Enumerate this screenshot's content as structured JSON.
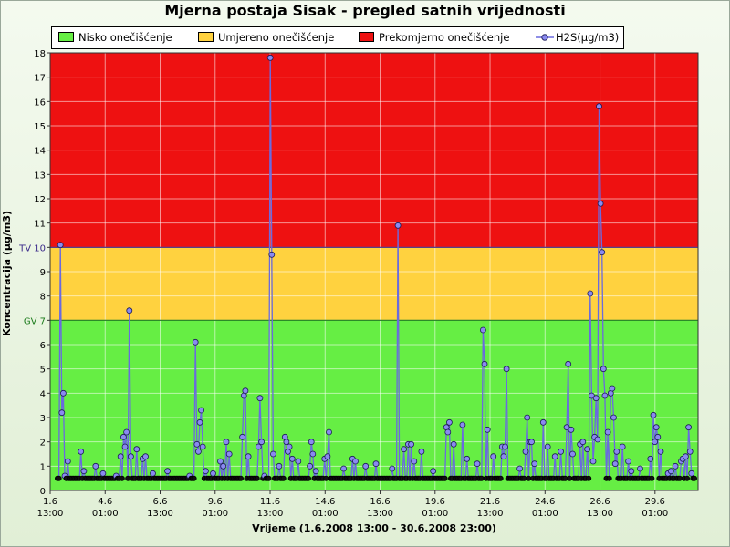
{
  "chart_data": {
    "type": "line",
    "title": "Mjerna postaja Sisak - pregled satnih vrijednosti",
    "xlabel": "Vrijeme (1.6.2008 13:00 - 30.6.2008 23:00)",
    "ylabel": "Koncentracija (µg/m3)",
    "ylim": [
      0,
      18
    ],
    "yticks": [
      {
        "value": 1,
        "label": "1"
      },
      {
        "value": 2,
        "label": "2"
      },
      {
        "value": 3,
        "label": "3"
      },
      {
        "value": 4,
        "label": "4"
      },
      {
        "value": 5,
        "label": "5"
      },
      {
        "value": 6,
        "label": "6"
      },
      {
        "value": 7,
        "label": "GV 7"
      },
      {
        "value": 8,
        "label": "8"
      },
      {
        "value": 9,
        "label": "9"
      },
      {
        "value": 10,
        "label": "TV 10"
      },
      {
        "value": 11,
        "label": "11"
      },
      {
        "value": 12,
        "label": "12"
      },
      {
        "value": 13,
        "label": "13"
      },
      {
        "value": 14,
        "label": "14"
      },
      {
        "value": 15,
        "label": "15"
      },
      {
        "value": 16,
        "label": "16"
      },
      {
        "value": 17,
        "label": "17"
      },
      {
        "value": 18,
        "label": "18"
      }
    ],
    "yzero_label": "0",
    "xticks": [
      {
        "date": "1.6",
        "time": "13:00"
      },
      {
        "date": "4.6",
        "time": "01:00"
      },
      {
        "date": "6.6",
        "time": "13:00"
      },
      {
        "date": "9.6",
        "time": "01:00"
      },
      {
        "date": "11.6",
        "time": "13:00"
      },
      {
        "date": "14.6",
        "time": "01:00"
      },
      {
        "date": "16.6",
        "time": "13:00"
      },
      {
        "date": "19.6",
        "time": "01:00"
      },
      {
        "date": "21.6",
        "time": "13:00"
      },
      {
        "date": "24.6",
        "time": "01:00"
      },
      {
        "date": "26.6",
        "time": "13:00"
      },
      {
        "date": "29.6",
        "time": "01:00"
      }
    ],
    "bands": [
      {
        "name": "Nisko onečišćenje",
        "from": 0,
        "to": 7,
        "color": "#66ee44"
      },
      {
        "name": "Umjereno onečišćenje",
        "from": 7,
        "to": 10,
        "color": "#ffd23f"
      },
      {
        "name": "Prekomjerno onečišćenje",
        "from": 10,
        "to": 18,
        "color": "#ee1111"
      }
    ],
    "thresholds": [
      {
        "label": "GV 7",
        "value": 7,
        "color": "#1a7a1a"
      },
      {
        "label": "TV 10",
        "value": 10,
        "color": "#3b2a8a"
      }
    ],
    "legend_position": "top",
    "grid": true,
    "series": [
      {
        "name": "H2S(µg/m3)",
        "color": "#6a6adf",
        "baseline": 0.5,
        "peaks": [
          [
            2,
            10.1
          ],
          [
            3,
            3.2
          ],
          [
            4,
            4.0
          ],
          [
            5,
            0.6
          ],
          [
            7,
            1.2
          ],
          [
            16,
            1.6
          ],
          [
            18,
            0.8
          ],
          [
            26,
            1.0
          ],
          [
            31,
            0.7
          ],
          [
            40,
            0.6
          ],
          [
            43,
            1.4
          ],
          [
            45,
            2.2
          ],
          [
            46,
            1.8
          ],
          [
            47,
            2.4
          ],
          [
            49,
            7.4
          ],
          [
            50,
            1.4
          ],
          [
            54,
            1.7
          ],
          [
            58,
            1.3
          ],
          [
            60,
            1.4
          ],
          [
            65,
            0.7
          ],
          [
            75,
            0.8
          ],
          [
            90,
            0.6
          ],
          [
            94,
            6.1
          ],
          [
            95,
            1.9
          ],
          [
            96,
            1.6
          ],
          [
            97,
            2.8
          ],
          [
            98,
            3.3
          ],
          [
            99,
            1.8
          ],
          [
            101,
            0.8
          ],
          [
            106,
            0.7
          ],
          [
            111,
            1.2
          ],
          [
            113,
            1.0
          ],
          [
            115,
            2.0
          ],
          [
            117,
            1.5
          ],
          [
            126,
            2.2
          ],
          [
            127,
            3.9
          ],
          [
            128,
            4.1
          ],
          [
            130,
            1.4
          ],
          [
            137,
            1.8
          ],
          [
            138,
            3.8
          ],
          [
            139,
            2.0
          ],
          [
            141,
            0.6
          ],
          [
            145,
            17.8
          ],
          [
            146,
            9.7
          ],
          [
            147,
            1.5
          ],
          [
            151,
            1.0
          ],
          [
            155,
            2.2
          ],
          [
            156,
            2.0
          ],
          [
            157,
            1.6
          ],
          [
            158,
            1.8
          ],
          [
            160,
            1.3
          ],
          [
            164,
            1.2
          ],
          [
            172,
            1.0
          ],
          [
            173,
            2.0
          ],
          [
            174,
            1.5
          ],
          [
            176,
            0.8
          ],
          [
            182,
            1.3
          ],
          [
            184,
            1.4
          ],
          [
            185,
            2.4
          ],
          [
            195,
            0.9
          ],
          [
            201,
            1.3
          ],
          [
            203,
            1.2
          ],
          [
            210,
            1.0
          ],
          [
            217,
            1.1
          ],
          [
            228,
            0.9
          ],
          [
            232,
            10.9
          ],
          [
            236,
            1.7
          ],
          [
            239,
            1.9
          ],
          [
            241,
            1.9
          ],
          [
            243,
            1.2
          ],
          [
            248,
            1.6
          ],
          [
            256,
            0.8
          ],
          [
            265,
            2.6
          ],
          [
            266,
            2.4
          ],
          [
            267,
            2.8
          ],
          [
            270,
            1.9
          ],
          [
            276,
            2.7
          ],
          [
            279,
            1.3
          ],
          [
            286,
            1.1
          ],
          [
            290,
            6.6
          ],
          [
            291,
            5.2
          ],
          [
            293,
            2.5
          ],
          [
            297,
            1.4
          ],
          [
            303,
            1.8
          ],
          [
            304,
            1.4
          ],
          [
            305,
            1.8
          ],
          [
            306,
            5.0
          ],
          [
            315,
            0.9
          ],
          [
            319,
            1.6
          ],
          [
            320,
            3.0
          ],
          [
            322,
            2.0
          ],
          [
            323,
            2.0
          ],
          [
            325,
            1.1
          ],
          [
            331,
            2.8
          ],
          [
            334,
            1.8
          ],
          [
            339,
            1.4
          ],
          [
            343,
            1.6
          ],
          [
            347,
            2.6
          ],
          [
            348,
            5.2
          ],
          [
            350,
            2.5
          ],
          [
            351,
            1.5
          ],
          [
            356,
            1.9
          ],
          [
            358,
            2.0
          ],
          [
            361,
            1.7
          ],
          [
            363,
            8.1
          ],
          [
            364,
            3.9
          ],
          [
            365,
            1.2
          ],
          [
            366,
            2.2
          ],
          [
            367,
            3.8
          ],
          [
            368,
            2.1
          ],
          [
            369,
            15.8
          ],
          [
            370,
            11.8
          ],
          [
            371,
            9.8
          ],
          [
            372,
            5.0
          ],
          [
            373,
            3.9
          ],
          [
            375,
            2.4
          ],
          [
            377,
            4.0
          ],
          [
            378,
            4.2
          ],
          [
            379,
            3.0
          ],
          [
            380,
            1.1
          ],
          [
            381,
            1.6
          ],
          [
            385,
            1.8
          ],
          [
            389,
            1.2
          ],
          [
            391,
            0.8
          ],
          [
            397,
            0.9
          ],
          [
            404,
            1.3
          ],
          [
            406,
            3.1
          ],
          [
            407,
            2.0
          ],
          [
            408,
            2.6
          ],
          [
            409,
            2.2
          ],
          [
            411,
            1.6
          ],
          [
            416,
            0.7
          ],
          [
            418,
            0.8
          ],
          [
            421,
            1.0
          ],
          [
            425,
            1.2
          ],
          [
            426,
            1.3
          ],
          [
            428,
            1.4
          ],
          [
            430,
            2.6
          ],
          [
            431,
            1.6
          ],
          [
            432,
            0.7
          ]
        ]
      }
    ]
  }
}
